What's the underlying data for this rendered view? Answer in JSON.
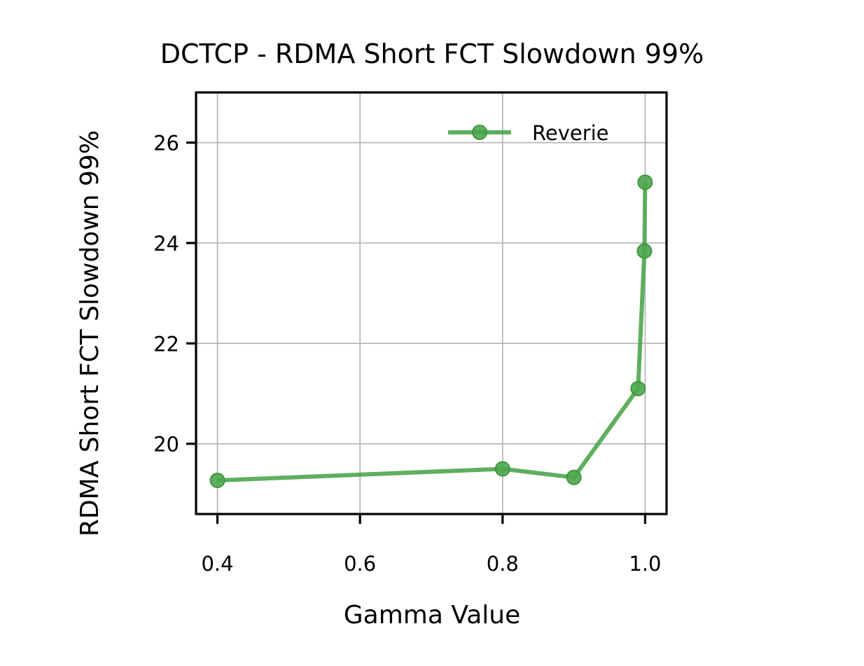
{
  "chart_data": {
    "type": "line",
    "title": "DCTCP - RDMA Short FCT Slowdown 99%",
    "xlabel": "Gamma Value",
    "ylabel": "RDMA Short FCT Slowdown 99%",
    "xlim": [
      0.37,
      1.03
    ],
    "ylim": [
      18.6,
      27.0
    ],
    "xticks": [
      0.4,
      0.6,
      0.8,
      1.0
    ],
    "xtick_labels": [
      "0.4",
      "0.6",
      "0.8",
      "1.0"
    ],
    "yticks": [
      20,
      22,
      24,
      26
    ],
    "ytick_labels": [
      "20",
      "22",
      "24",
      "26"
    ],
    "grid": true,
    "legend_position": "upper right",
    "series": [
      {
        "name": "Reverie",
        "color": "#4ca64c",
        "marker": "circle",
        "x": [
          0.4,
          0.8,
          0.9,
          0.99,
          0.999,
          0.9999
        ],
        "y": [
          19.27,
          19.5,
          19.33,
          21.1,
          23.84,
          25.21
        ]
      }
    ]
  }
}
